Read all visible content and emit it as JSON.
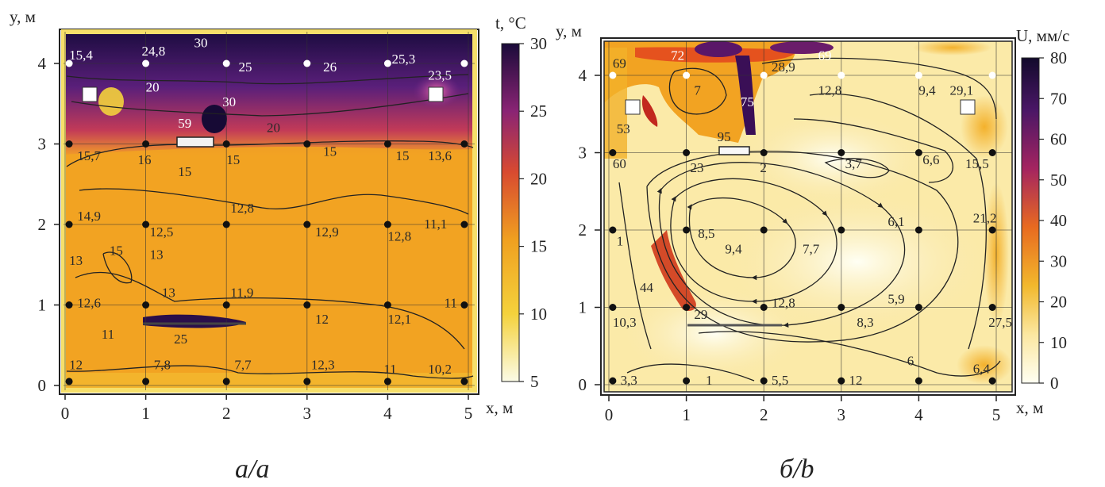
{
  "chart_data": [
    {
      "type": "heatmap",
      "panel_caption": "а/a",
      "xlabel": "x, м",
      "ylabel": "y, м",
      "xlim": [
        0,
        5
      ],
      "ylim": [
        0,
        4.3
      ],
      "x_ticks": [
        "0",
        "1",
        "2",
        "3",
        "4",
        "5"
      ],
      "y_ticks": [
        "0",
        "1",
        "2",
        "3",
        "4"
      ],
      "colorbar": {
        "label": "t, °C",
        "min": 5,
        "max": 30,
        "ticks": [
          "5",
          "10",
          "15",
          "20",
          "25",
          "30"
        ]
      },
      "labels": [
        {
          "x": 0.05,
          "y": 4.05,
          "text": "15,4",
          "light": true
        },
        {
          "x": 0.95,
          "y": 4.1,
          "text": "24,8",
          "light": true
        },
        {
          "x": 1.6,
          "y": 4.2,
          "text": "30",
          "light": true
        },
        {
          "x": 2.15,
          "y": 3.9,
          "text": "25",
          "light": true
        },
        {
          "x": 3.2,
          "y": 3.9,
          "text": "26",
          "light": true
        },
        {
          "x": 4.05,
          "y": 4.0,
          "text": "25,3",
          "light": true
        },
        {
          "x": 4.5,
          "y": 3.8,
          "text": "23,5",
          "light": true
        },
        {
          "x": 1.0,
          "y": 3.65,
          "text": "20",
          "light": true
        },
        {
          "x": 1.95,
          "y": 3.47,
          "text": "30",
          "light": true
        },
        {
          "x": 1.4,
          "y": 3.2,
          "text": "59",
          "light": true
        },
        {
          "x": 2.5,
          "y": 3.15,
          "text": "20",
          "light": false
        },
        {
          "x": 0.15,
          "y": 2.8,
          "text": "15,7",
          "light": false
        },
        {
          "x": 0.9,
          "y": 2.75,
          "text": "16",
          "light": false
        },
        {
          "x": 1.4,
          "y": 2.6,
          "text": "15",
          "light": false
        },
        {
          "x": 2.0,
          "y": 2.75,
          "text": "15",
          "light": false
        },
        {
          "x": 3.2,
          "y": 2.85,
          "text": "15",
          "light": false
        },
        {
          "x": 4.1,
          "y": 2.8,
          "text": "15",
          "light": false
        },
        {
          "x": 4.5,
          "y": 2.8,
          "text": "13,6",
          "light": false
        },
        {
          "x": 2.05,
          "y": 2.15,
          "text": "12,8",
          "light": false
        },
        {
          "x": 0.15,
          "y": 2.05,
          "text": "14,9",
          "light": false
        },
        {
          "x": 1.05,
          "y": 1.85,
          "text": "12,5",
          "light": false
        },
        {
          "x": 3.1,
          "y": 1.85,
          "text": "12,9",
          "light": false
        },
        {
          "x": 4.0,
          "y": 1.8,
          "text": "12,8",
          "light": false
        },
        {
          "x": 4.45,
          "y": 1.95,
          "text": "11,1",
          "light": false
        },
        {
          "x": 0.05,
          "y": 1.5,
          "text": "13",
          "light": false
        },
        {
          "x": 0.55,
          "y": 1.62,
          "text": "15",
          "light": false
        },
        {
          "x": 1.05,
          "y": 1.57,
          "text": "13",
          "light": false
        },
        {
          "x": 1.2,
          "y": 1.1,
          "text": "13",
          "light": false
        },
        {
          "x": 2.05,
          "y": 1.1,
          "text": "11,9",
          "light": false
        },
        {
          "x": 0.15,
          "y": 0.97,
          "text": "12,6",
          "light": false
        },
        {
          "x": 3.1,
          "y": 0.77,
          "text": "12",
          "light": false
        },
        {
          "x": 4.0,
          "y": 0.77,
          "text": "12,1",
          "light": false
        },
        {
          "x": 4.7,
          "y": 0.97,
          "text": "11",
          "light": false
        },
        {
          "x": 1.35,
          "y": 0.52,
          "text": "25",
          "light": false
        },
        {
          "x": 0.45,
          "y": 0.58,
          "text": "11",
          "light": false
        },
        {
          "x": 0.05,
          "y": 0.2,
          "text": "12",
          "light": false
        },
        {
          "x": 1.1,
          "y": 0.2,
          "text": "7,8",
          "light": false
        },
        {
          "x": 2.1,
          "y": 0.2,
          "text": "7,7",
          "light": false
        },
        {
          "x": 3.05,
          "y": 0.2,
          "text": "12,3",
          "light": false
        },
        {
          "x": 3.95,
          "y": 0.15,
          "text": "11",
          "light": false
        },
        {
          "x": 4.5,
          "y": 0.15,
          "text": "10,2",
          "light": false
        }
      ]
    },
    {
      "type": "heatmap",
      "panel_caption": "б/b",
      "xlabel": "x, м",
      "ylabel": "y, м",
      "xlim": [
        0,
        5
      ],
      "ylim": [
        0,
        4.4
      ],
      "x_ticks": [
        "0",
        "1",
        "2",
        "3",
        "4",
        "5"
      ],
      "y_ticks": [
        "0",
        "1",
        "2",
        "3",
        "4"
      ],
      "colorbar": {
        "label": "U, мм/с",
        "min": 0,
        "max": 80,
        "ticks": [
          "0",
          "10",
          "20",
          "30",
          "40",
          "50",
          "60",
          "70",
          "80"
        ]
      },
      "labels": [
        {
          "x": 0.05,
          "y": 4.1,
          "text": "69",
          "light": false
        },
        {
          "x": 0.8,
          "y": 4.2,
          "text": "72",
          "light": true
        },
        {
          "x": 2.7,
          "y": 4.2,
          "text": "69",
          "light": true
        },
        {
          "x": 2.1,
          "y": 4.05,
          "text": "28,9",
          "light": false
        },
        {
          "x": 0.1,
          "y": 3.25,
          "text": "53",
          "light": false
        },
        {
          "x": 1.1,
          "y": 3.75,
          "text": "7",
          "light": false
        },
        {
          "x": 1.7,
          "y": 3.6,
          "text": "75",
          "light": true
        },
        {
          "x": 2.7,
          "y": 3.75,
          "text": "12,8",
          "light": false
        },
        {
          "x": 4.0,
          "y": 3.75,
          "text": "9,4",
          "light": false
        },
        {
          "x": 4.4,
          "y": 3.75,
          "text": "29,1",
          "light": false
        },
        {
          "x": 1.4,
          "y": 3.15,
          "text": "95",
          "light": false
        },
        {
          "x": 0.05,
          "y": 2.8,
          "text": "60",
          "light": false
        },
        {
          "x": 1.05,
          "y": 2.75,
          "text": "23",
          "light": false
        },
        {
          "x": 1.95,
          "y": 2.75,
          "text": "2",
          "light": false
        },
        {
          "x": 3.05,
          "y": 2.8,
          "text": "3,7",
          "light": false
        },
        {
          "x": 4.05,
          "y": 2.85,
          "text": "6,6",
          "light": false
        },
        {
          "x": 4.6,
          "y": 2.8,
          "text": "15,5",
          "light": false
        },
        {
          "x": 1.15,
          "y": 1.9,
          "text": "8,5",
          "light": false
        },
        {
          "x": 1.5,
          "y": 1.7,
          "text": "9,4",
          "light": false
        },
        {
          "x": 2.5,
          "y": 1.7,
          "text": "7,7",
          "light": false
        },
        {
          "x": 3.6,
          "y": 2.05,
          "text": "6,1",
          "light": false
        },
        {
          "x": 4.7,
          "y": 2.1,
          "text": "21,2",
          "light": false
        },
        {
          "x": 0.1,
          "y": 1.8,
          "text": "1",
          "light": false
        },
        {
          "x": 0.4,
          "y": 1.2,
          "text": "44",
          "light": false
        },
        {
          "x": 1.1,
          "y": 0.85,
          "text": "29",
          "light": false
        },
        {
          "x": 2.1,
          "y": 1.0,
          "text": "12,8",
          "light": false
        },
        {
          "x": 3.6,
          "y": 1.05,
          "text": "5,9",
          "light": false
        },
        {
          "x": 0.05,
          "y": 0.75,
          "text": "10,3",
          "light": false
        },
        {
          "x": 3.2,
          "y": 0.75,
          "text": "8,3",
          "light": false
        },
        {
          "x": 4.9,
          "y": 0.75,
          "text": "27,5",
          "light": false
        },
        {
          "x": 3.85,
          "y": 0.25,
          "text": "6",
          "light": false
        },
        {
          "x": 4.7,
          "y": 0.15,
          "text": "6,4",
          "light": false
        },
        {
          "x": 0.15,
          "y": 0.0,
          "text": "3,3",
          "light": false
        },
        {
          "x": 1.25,
          "y": 0.0,
          "text": "1",
          "light": false
        },
        {
          "x": 2.1,
          "y": 0.0,
          "text": "5,5",
          "light": false
        },
        {
          "x": 3.1,
          "y": 0.0,
          "text": "12",
          "light": false
        }
      ]
    }
  ]
}
